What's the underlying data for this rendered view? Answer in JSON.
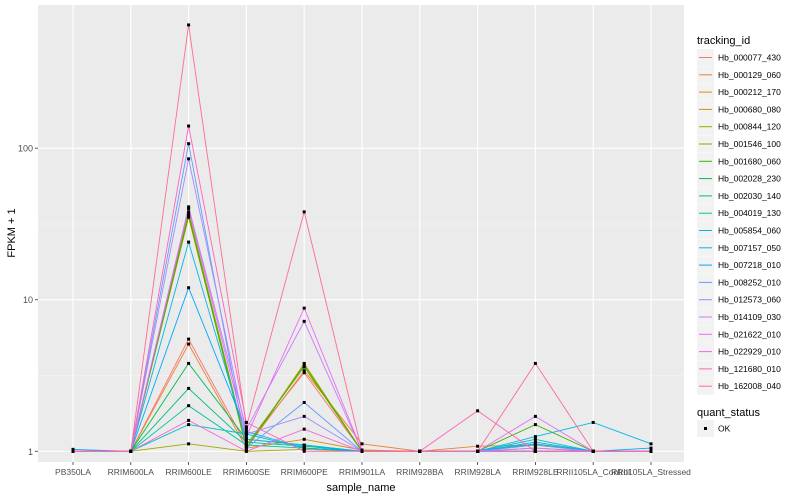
{
  "chart_data": {
    "type": "line",
    "xlabel": "sample_name",
    "ylabel": "FPKM + 1",
    "y_scale": "log10",
    "ylim": [
      0.85,
      880
    ],
    "y_ticks": [
      {
        "value": 1,
        "label": "1"
      },
      {
        "value": 10,
        "label": "10"
      },
      {
        "value": 100,
        "label": "100"
      }
    ],
    "categories": [
      "PB350LA",
      "RRIM600LA",
      "RRIM600LE",
      "RRIM600SE",
      "RRIM600PE",
      "RRIM901LA",
      "RRIM928BA",
      "RRIM928LA",
      "RRIM928LE",
      "RRII105LA_Control",
      "RRII105LA_Stressed"
    ],
    "grid": true,
    "legend_position": "right",
    "legend_title": "tracking_id",
    "shape_legend_title": "quant_status",
    "shape_legend_items": [
      "OK"
    ],
    "series": [
      {
        "name": "Hb_000077_430",
        "color": "#f8766d",
        "values": [
          1.0,
          1.0,
          5.5,
          1.1,
          3.3,
          1.0,
          1.0,
          1.0,
          1.0,
          1.0,
          1.0
        ]
      },
      {
        "name": "Hb_000129_060",
        "color": "#ea8331",
        "values": [
          1.0,
          1.0,
          5.1,
          1.05,
          3.4,
          1.12,
          1.0,
          1.08,
          1.1,
          1.0,
          1.0
        ]
      },
      {
        "name": "Hb_000212_170",
        "color": "#d89000",
        "values": [
          1.0,
          1.0,
          35,
          1.05,
          1.2,
          1.02,
          1.0,
          1.0,
          1.0,
          1.0,
          1.0
        ]
      },
      {
        "name": "Hb_000680_080",
        "color": "#c09b00",
        "values": [
          1.0,
          1.0,
          37,
          1.05,
          3.8,
          1.0,
          1.0,
          1.0,
          1.0,
          1.0,
          1.0
        ]
      },
      {
        "name": "Hb_000844_120",
        "color": "#a3a500",
        "values": [
          1.0,
          1.0,
          1.12,
          1.0,
          1.03,
          1.0,
          1.0,
          1.0,
          1.0,
          1.0,
          1.0
        ]
      },
      {
        "name": "Hb_001546_100",
        "color": "#7cae00",
        "values": [
          1.0,
          1.0,
          38,
          1.1,
          3.6,
          1.0,
          1.0,
          1.0,
          1.05,
          1.0,
          1.0
        ]
      },
      {
        "name": "Hb_001680_060",
        "color": "#39b600",
        "values": [
          1.0,
          1.0,
          36,
          1.05,
          3.7,
          1.0,
          1.0,
          1.0,
          1.5,
          1.0,
          1.0
        ]
      },
      {
        "name": "Hb_002028_230",
        "color": "#00bb4e",
        "values": [
          1.0,
          1.0,
          3.8,
          1.2,
          1.1,
          1.0,
          1.0,
          1.0,
          1.0,
          1.0,
          1.0
        ]
      },
      {
        "name": "Hb_002030_140",
        "color": "#00bf7d",
        "values": [
          1.0,
          1.0,
          2.6,
          1.15,
          1.08,
          1.0,
          1.0,
          1.0,
          1.12,
          1.0,
          1.0
        ]
      },
      {
        "name": "Hb_004019_130",
        "color": "#00c1a3",
        "values": [
          1.0,
          1.0,
          2.0,
          1.1,
          1.05,
          1.0,
          1.0,
          1.0,
          1.0,
          1.0,
          1.0
        ]
      },
      {
        "name": "Hb_005854_060",
        "color": "#00bfc4",
        "values": [
          1.0,
          1.0,
          1.5,
          1.3,
          1.05,
          1.0,
          1.0,
          1.0,
          1.2,
          1.0,
          1.0
        ]
      },
      {
        "name": "Hb_007157_050",
        "color": "#00b8e7",
        "values": [
          1.0,
          1.0,
          24,
          1.2,
          1.1,
          1.0,
          1.0,
          1.0,
          1.25,
          1.55,
          1.12
        ]
      },
      {
        "name": "Hb_007218_010",
        "color": "#00a9ff",
        "values": [
          1.03,
          1.0,
          12,
          1.35,
          1.05,
          1.0,
          1.0,
          1.0,
          1.15,
          1.0,
          1.05
        ]
      },
      {
        "name": "Hb_008252_010",
        "color": "#619cff",
        "values": [
          1.0,
          1.0,
          107,
          1.05,
          2.1,
          1.0,
          1.0,
          1.0,
          1.1,
          1.0,
          1.0
        ]
      },
      {
        "name": "Hb_012573_060",
        "color": "#9f8cff",
        "values": [
          1.0,
          1.0,
          85,
          1.3,
          1.7,
          1.0,
          1.0,
          1.0,
          1.0,
          1.0,
          1.0
        ]
      },
      {
        "name": "Hb_014109_030",
        "color": "#c77cff",
        "values": [
          1.0,
          1.0,
          41,
          1.4,
          7.2,
          1.0,
          1.0,
          1.0,
          1.05,
          1.0,
          1.0
        ]
      },
      {
        "name": "Hb_021622_010",
        "color": "#e76bf3",
        "values": [
          1.0,
          1.0,
          40,
          1.25,
          8.8,
          1.0,
          1.0,
          1.0,
          1.7,
          1.0,
          1.0
        ]
      },
      {
        "name": "Hb_022929_010",
        "color": "#fa62db",
        "values": [
          1.0,
          1.0,
          1.6,
          1.0,
          1.4,
          1.0,
          1.0,
          1.0,
          1.0,
          1.0,
          1.0
        ]
      },
      {
        "name": "Hb_121680_010",
        "color": "#ff62bc",
        "values": [
          1.0,
          1.0,
          140,
          1.55,
          1.0,
          1.0,
          1.0,
          1.85,
          1.0,
          1.0,
          1.0
        ]
      },
      {
        "name": "Hb_162008_040",
        "color": "#ff6c91",
        "values": [
          1.0,
          1.0,
          650,
          1.45,
          38,
          1.0,
          1.0,
          1.0,
          3.8,
          1.0,
          1.0
        ]
      }
    ]
  }
}
